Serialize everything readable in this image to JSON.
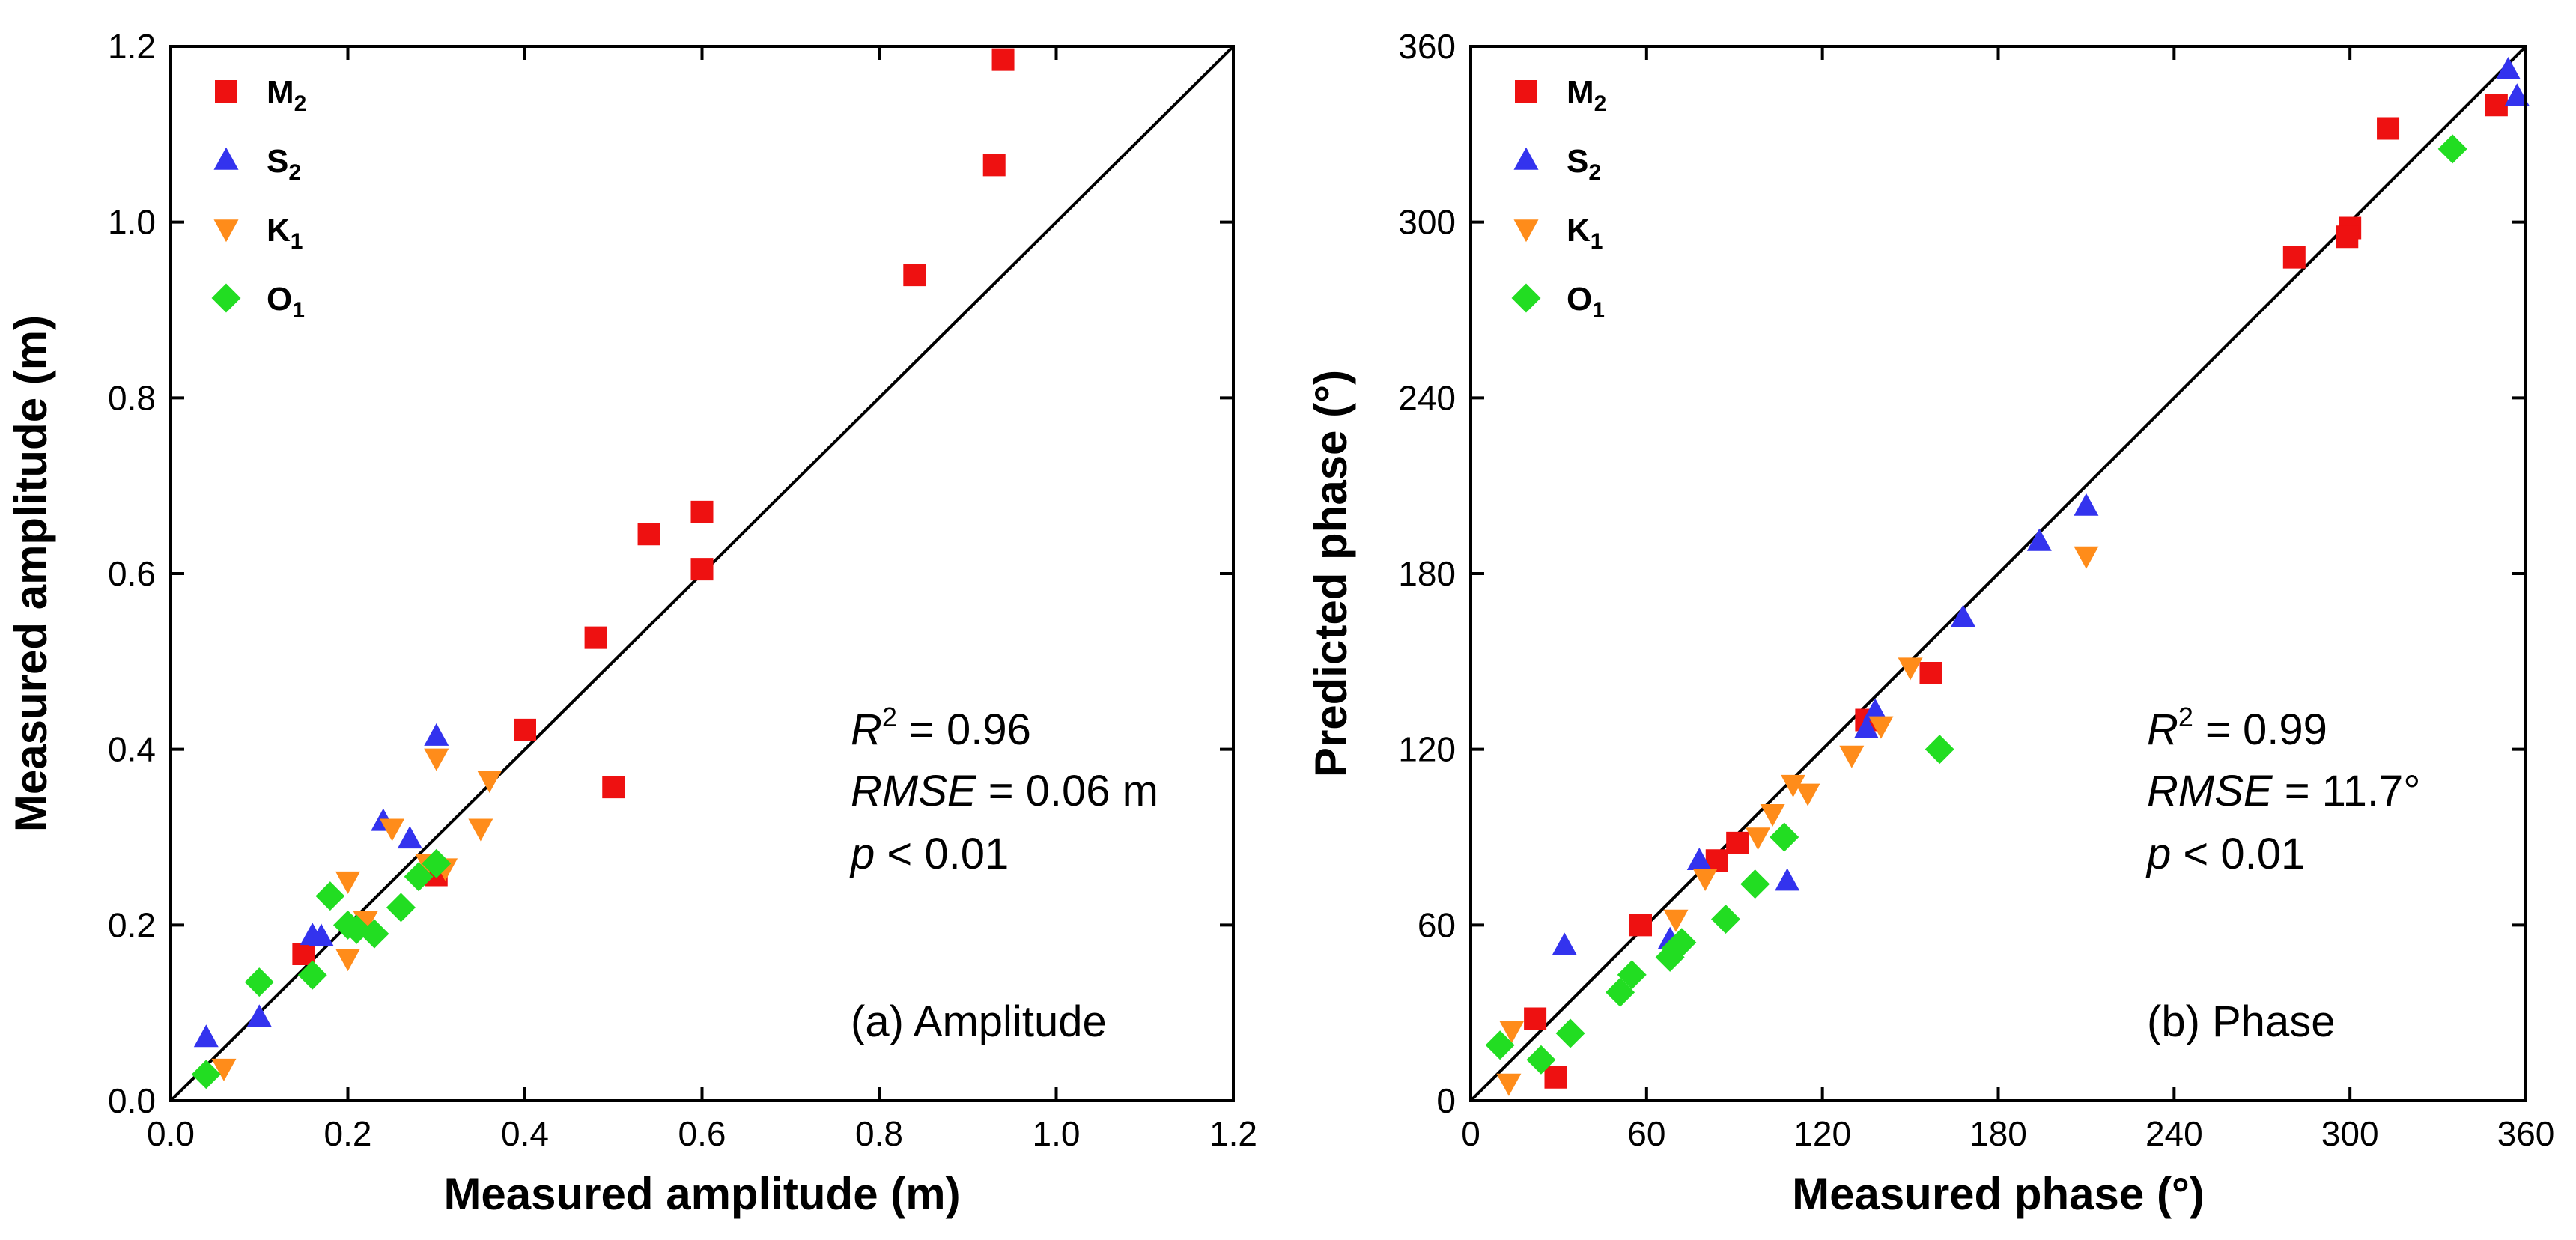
{
  "colors": {
    "M2": "#ee1111",
    "S2": "#3333ee",
    "K1": "#ff8c1a",
    "O1": "#22dd22",
    "axis": "#000000"
  },
  "chart_data": [
    {
      "type": "scatter",
      "panel_label": "(a) Amplitude",
      "xlabel": "Measured amplitude (m)",
      "ylabel": "Measured amplitude (m)",
      "xlim": [
        0,
        1.2
      ],
      "ylim": [
        0,
        1.2
      ],
      "xticks": [
        "0.0",
        "0.2",
        "0.4",
        "0.6",
        "0.8",
        "1.0",
        "1.2"
      ],
      "yticks": [
        "0.0",
        "0.2",
        "0.4",
        "0.6",
        "0.8",
        "1.0",
        "1.2"
      ],
      "xtick_values": [
        0,
        0.2,
        0.4,
        0.6,
        0.8,
        1.0,
        1.2
      ],
      "ytick_values": [
        0,
        0.2,
        0.4,
        0.6,
        0.8,
        1.0,
        1.2
      ],
      "reference_line": "1:1",
      "legend_position": "top-left",
      "stats": {
        "r2_label": "R",
        "r2_sup": "2",
        "r2_value": " = 0.96",
        "rmse_label": "RMSE",
        "rmse_value": " = 0.06 m",
        "p_label": "p",
        "p_value": " < 0.01"
      },
      "series": [
        {
          "name": "M",
          "sub": "2",
          "key": "M2",
          "marker": "square",
          "x": [
            0.94,
            0.93,
            0.84,
            0.6,
            0.54,
            0.6,
            0.48,
            0.4,
            0.5,
            0.3,
            0.15
          ],
          "y": [
            1.185,
            1.065,
            0.94,
            0.67,
            0.645,
            0.605,
            0.527,
            0.422,
            0.357,
            0.257,
            0.167
          ]
        },
        {
          "name": "S",
          "sub": "2",
          "key": "S2",
          "marker": "triangle-up",
          "x": [
            0.3,
            0.24,
            0.27,
            0.16,
            0.17,
            0.1,
            0.04
          ],
          "y": [
            0.415,
            0.318,
            0.298,
            0.188,
            0.187,
            0.095,
            0.072
          ]
        },
        {
          "name": "K",
          "sub": "1",
          "key": "K1",
          "marker": "triangle-down",
          "x": [
            0.3,
            0.36,
            0.25,
            0.35,
            0.29,
            0.31,
            0.2,
            0.22,
            0.2,
            0.06
          ],
          "y": [
            0.39,
            0.365,
            0.31,
            0.31,
            0.27,
            0.265,
            0.25,
            0.205,
            0.162,
            0.037
          ]
        },
        {
          "name": "O",
          "sub": "1",
          "key": "O1",
          "marker": "diamond",
          "x": [
            0.18,
            0.3,
            0.28,
            0.26,
            0.2,
            0.23,
            0.21,
            0.16,
            0.1,
            0.04
          ],
          "y": [
            0.233,
            0.27,
            0.255,
            0.22,
            0.2,
            0.19,
            0.195,
            0.143,
            0.135,
            0.03
          ]
        }
      ]
    },
    {
      "type": "scatter",
      "panel_label": "(b) Phase",
      "xlabel": "Measured phase (°)",
      "ylabel": "Predicted phase (°)",
      "xlim": [
        0,
        360
      ],
      "ylim": [
        0,
        360
      ],
      "xticks": [
        "0",
        "60",
        "120",
        "180",
        "240",
        "300",
        "360"
      ],
      "yticks": [
        "0",
        "60",
        "120",
        "180",
        "240",
        "300",
        "360"
      ],
      "xtick_values": [
        0,
        60,
        120,
        180,
        240,
        300,
        360
      ],
      "ytick_values": [
        0,
        60,
        120,
        180,
        240,
        300,
        360
      ],
      "reference_line": "1:1",
      "legend_position": "top-left",
      "stats": {
        "r2_label": "R",
        "r2_sup": "2",
        "r2_value": " = 0.99",
        "rmse_label": "RMSE",
        "rmse_value": " = 11.7°",
        "p_label": "p",
        "p_value": " < 0.01"
      },
      "series": [
        {
          "name": "M",
          "sub": "2",
          "key": "M2",
          "marker": "square",
          "x": [
            350,
            313,
            300,
            299,
            281,
            157,
            135,
            91,
            84,
            58,
            22,
            29
          ],
          "y": [
            340,
            332,
            298,
            295,
            288,
            146,
            130,
            88,
            82,
            60,
            28,
            8
          ]
        },
        {
          "name": "S",
          "sub": "2",
          "key": "S2",
          "marker": "triangle-up",
          "x": [
            354,
            357,
            210,
            194,
            168,
            138,
            135,
            108,
            78,
            68,
            32
          ],
          "y": [
            352,
            343,
            203,
            191,
            165,
            133,
            127,
            75,
            82,
            55,
            53
          ]
        },
        {
          "name": "K",
          "sub": "1",
          "key": "K1",
          "marker": "triangle-down",
          "x": [
            210,
            150,
            140,
            130,
            110,
            115,
            103,
            98,
            80,
            70,
            14,
            13
          ],
          "y": [
            186,
            148,
            128,
            118,
            108,
            105,
            98,
            90,
            76,
            62,
            24,
            6
          ]
        },
        {
          "name": "O",
          "sub": "1",
          "key": "O1",
          "marker": "diamond",
          "x": [
            335,
            160,
            107,
            97,
            87,
            72,
            70,
            68,
            55,
            51,
            34,
            24,
            10
          ],
          "y": [
            325,
            120,
            90,
            74,
            62,
            54,
            52,
            49,
            43,
            37,
            23,
            14,
            19
          ]
        }
      ]
    }
  ]
}
